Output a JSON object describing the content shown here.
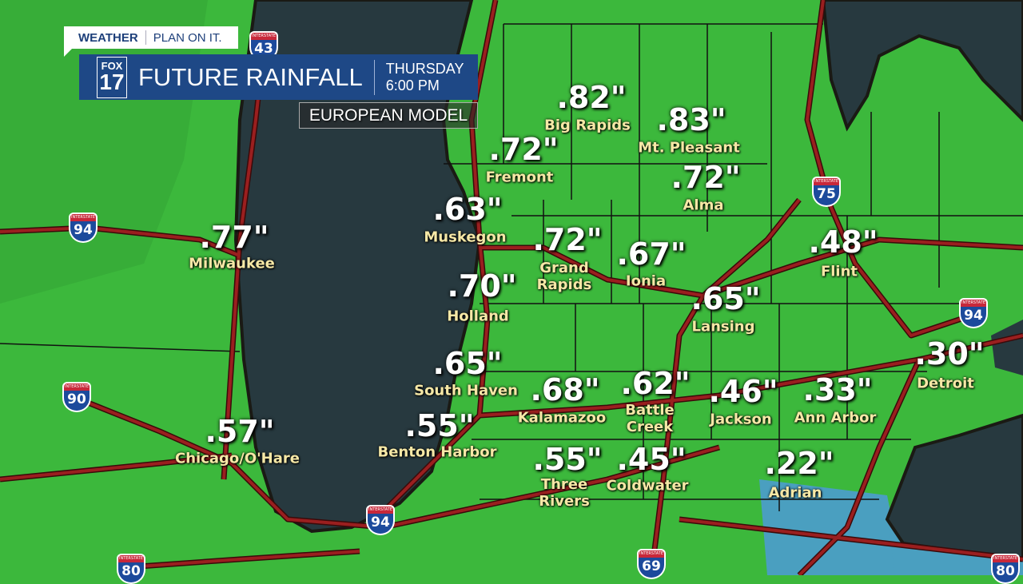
{
  "header": {
    "tagline_brand": "WEATHER",
    "tagline_text": "PLAN ON IT.",
    "logo_top": "FOX",
    "logo_num": "17",
    "title": "FUTURE RAINFALL",
    "day": "THURSDAY",
    "time": "6:00 PM",
    "model": "EUROPEAN MODEL"
  },
  "colors": {
    "land": "#3cb83c",
    "water": "#27393f",
    "roads": "#8b1a1a",
    "banner": "#1e4886",
    "city_label": "#f6e8a6"
  },
  "icons": {
    "shield": "interstate-shield-icon"
  },
  "shield_header": "INTERSTATE",
  "interstates": [
    "43",
    "94",
    "90",
    "80",
    "94",
    "69",
    "75",
    "94",
    "80"
  ],
  "rainfall": [
    {
      "city": "Big Rapids",
      "value": ".82\""
    },
    {
      "city": "Mt. Pleasant",
      "value": ".83\""
    },
    {
      "city": "Fremont",
      "value": ".72\""
    },
    {
      "city": "Alma",
      "value": ".72\""
    },
    {
      "city": "Muskegon",
      "value": ".63\""
    },
    {
      "city": "Milwaukee",
      "value": ".77\""
    },
    {
      "city": "Grand\nRapids",
      "value": ".72\""
    },
    {
      "city": "Ionia",
      "value": ".67\""
    },
    {
      "city": "Flint",
      "value": ".48\""
    },
    {
      "city": "Holland",
      "value": ".70\""
    },
    {
      "city": "Lansing",
      "value": ".65\""
    },
    {
      "city": "Detroit",
      "value": ".30\""
    },
    {
      "city": "South Haven",
      "value": ".65\""
    },
    {
      "city": "Kalamazoo",
      "value": ".68\""
    },
    {
      "city": "Battle\nCreek",
      "value": ".62\""
    },
    {
      "city": "Jackson",
      "value": ".46\""
    },
    {
      "city": "Ann Arbor",
      "value": ".33\""
    },
    {
      "city": "Benton Harbor",
      "value": ".55\""
    },
    {
      "city": "Chicago/O'Hare",
      "value": ".57\""
    },
    {
      "city": "Three\nRivers",
      "value": ".55\""
    },
    {
      "city": "Coldwater",
      "value": ".45\""
    },
    {
      "city": "Adrian",
      "value": ".22\""
    }
  ]
}
